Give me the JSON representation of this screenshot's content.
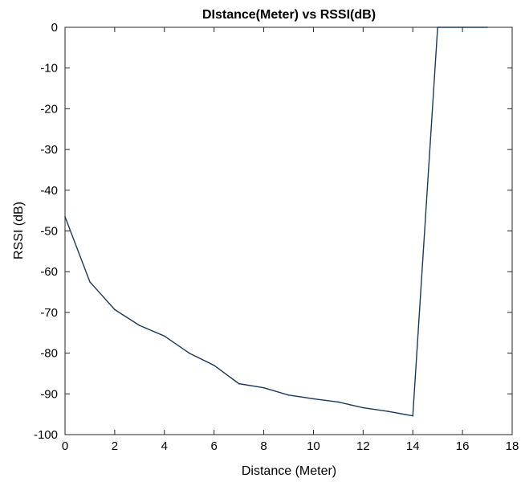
{
  "chart_data": {
    "type": "line",
    "title": "DIstance(Meter) vs RSSI(dB)",
    "xlabel": "Distance (Meter)",
    "ylabel": "RSSI (dB)",
    "xlim": [
      0,
      18
    ],
    "ylim": [
      -100,
      0
    ],
    "xticks": [
      0,
      2,
      4,
      6,
      8,
      10,
      12,
      14,
      16,
      18
    ],
    "yticks": [
      0,
      -10,
      -20,
      -30,
      -40,
      -50,
      -60,
      -70,
      -80,
      -90,
      -100
    ],
    "grid": false,
    "legend": "none",
    "line_color": "#1a3a5c",
    "series": [
      {
        "x": [
          0,
          1,
          2,
          3,
          4,
          5,
          6,
          7,
          8,
          9,
          10,
          11,
          12,
          13,
          14,
          15,
          16,
          17
        ],
        "values": [
          -46.5,
          -62.5,
          -69.3,
          -73.2,
          -75.8,
          -80,
          -83,
          -87.5,
          -88.5,
          -90.3,
          -91.2,
          -92,
          -93.4,
          -94.3,
          -95.4,
          0,
          0,
          0
        ]
      }
    ]
  }
}
